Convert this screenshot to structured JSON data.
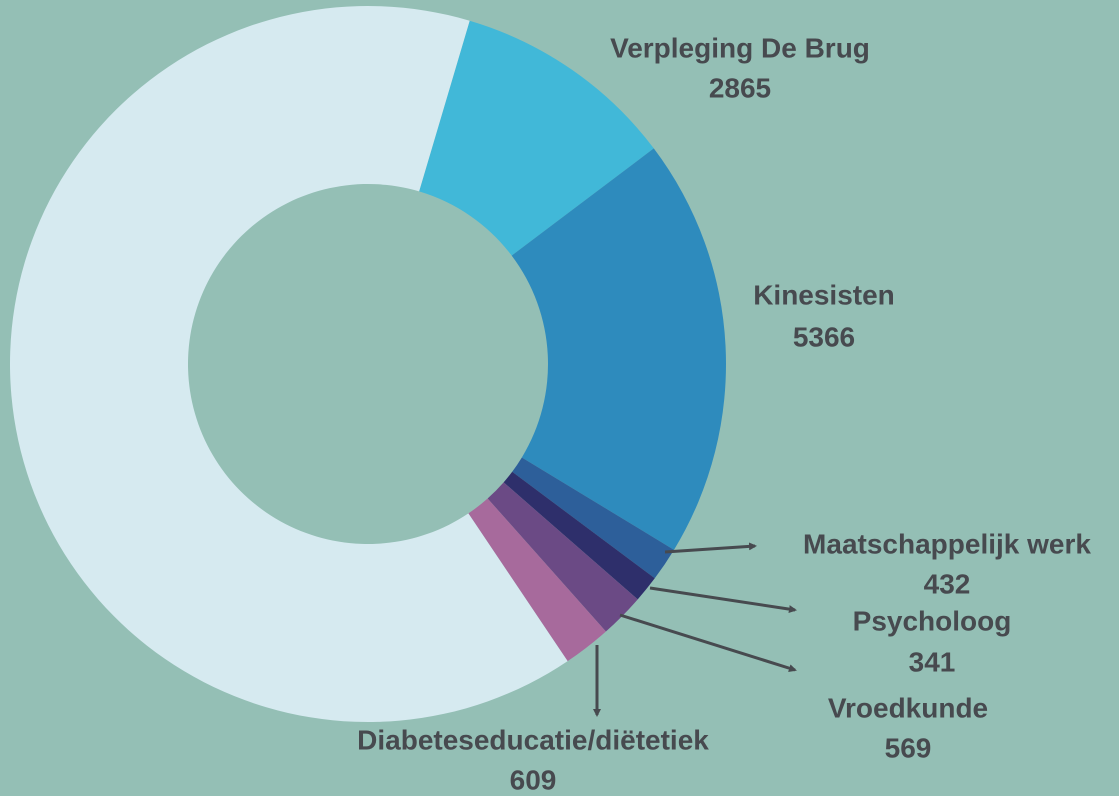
{
  "chart_data": {
    "type": "donut",
    "categories": [
      "Verpleging De Brug",
      "Kinesisten",
      "Maatschappelijk werk",
      "Psycholoog",
      "Vroedkunde",
      "Diabeteseducatie/diëtetiek",
      null
    ],
    "values": [
      2865,
      5366,
      432,
      341,
      569,
      609,
      18100
    ],
    "colors": [
      "#41b8d8",
      "#2e8bbd",
      "#2d5f9a",
      "#2e2f6b",
      "#6b4a85",
      "#a76a9c",
      "#d6eaf0"
    ]
  }
}
